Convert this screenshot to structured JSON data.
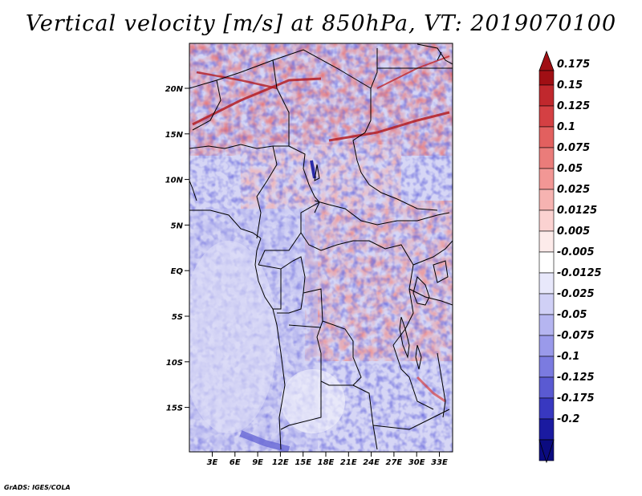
{
  "title": "Vertical velocity [m/s] at 850hPa, VT: 2019070100",
  "footer": "GrADS: IGES/COLA",
  "map": {
    "lat_ticks": [
      "20N",
      "15N",
      "10N",
      "5N",
      "EQ",
      "5S",
      "10S",
      "15S"
    ],
    "lon_ticks": [
      "3E",
      "6E",
      "9E",
      "12E",
      "15E",
      "18E",
      "21E",
      "24E",
      "27E",
      "30E",
      "33E"
    ]
  },
  "colorbar": {
    "levels": [
      "0.175",
      "0.15",
      "0.125",
      "0.1",
      "0.075",
      "0.05",
      "0.025",
      "0.0125",
      "0.005",
      "-0.005",
      "-0.0125",
      "-0.025",
      "-0.05",
      "-0.075",
      "-0.1",
      "-0.125",
      "-0.175",
      "-0.2"
    ],
    "colors": [
      "#a00f14",
      "#c0282d",
      "#d44043",
      "#e2605f",
      "#ea7c7a",
      "#f29795",
      "#f6b3b1",
      "#fbd2d1",
      "#fdebea",
      "#ffffff",
      "#e8e8fb",
      "#d0d0f6",
      "#b5b5f0",
      "#9a9aea",
      "#7b7be0",
      "#5a5ad2",
      "#3838c0",
      "#1a1aa0",
      "#0b0b80"
    ],
    "top_color": "#a00f14",
    "bottom_color": "#0b0b80"
  }
}
